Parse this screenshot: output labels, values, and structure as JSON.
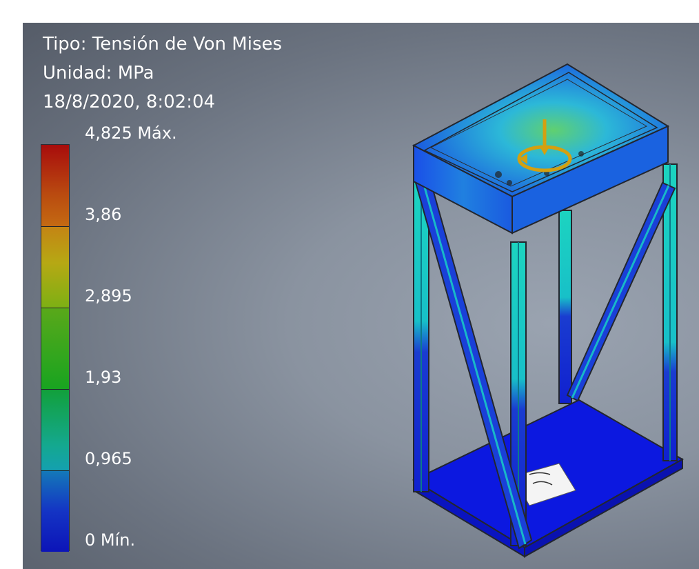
{
  "result_info": {
    "type_line": "Tipo: Tensión de Von Mises",
    "unit_line": "Unidad: MPa",
    "timestamp_line": "18/8/2020, 8:02:04"
  },
  "legend": {
    "max_label": "4,825 Máx.",
    "min_label": "0 Mín.",
    "tick_labels": [
      "3,86",
      "2,895",
      "1,93",
      "0,965"
    ],
    "colors": {
      "top": "#9e1010",
      "upper": "#c9a210",
      "mid": "#10a020",
      "lower": "#10a8a0",
      "bottom": "#1010c0"
    }
  },
  "model": {
    "icon_name": "fea-stress-model",
    "load_marker": "force-arrow-icon",
    "constraint_marker": "fixed-constraint-icon"
  }
}
